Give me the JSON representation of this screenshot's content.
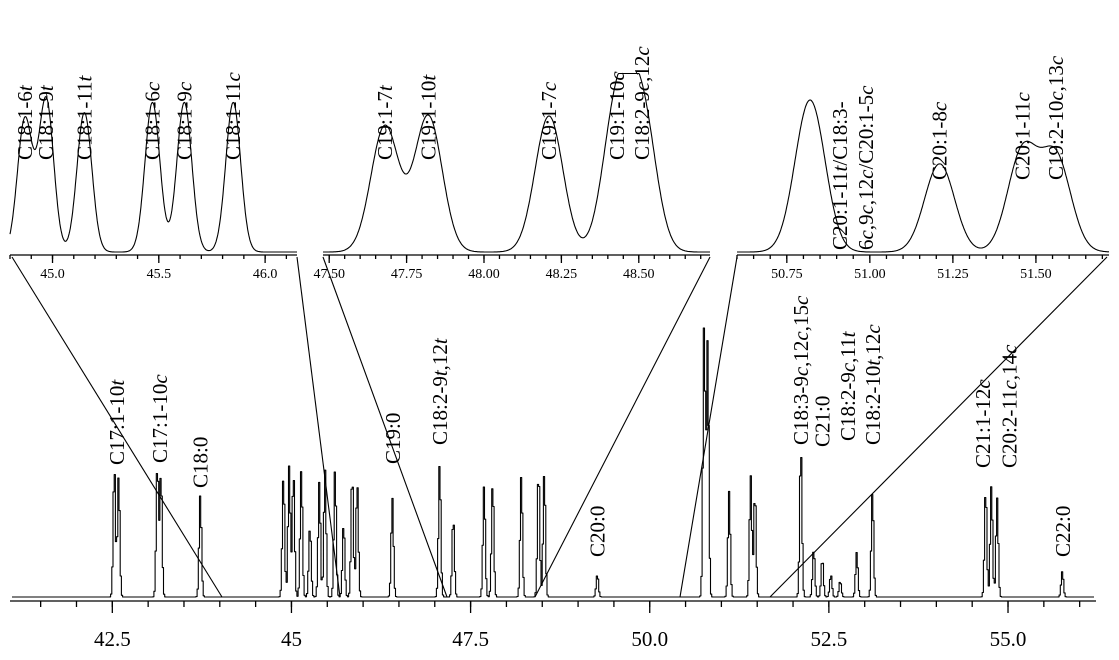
{
  "chart_data": [
    {
      "type": "line",
      "subtype": "chromatogram",
      "title": "",
      "xlabel": "",
      "ylabel": "",
      "xlim": [
        41.1,
        56.2
      ],
      "xticks": [
        "42.5",
        "45",
        "47.5",
        "50.0",
        "52.5",
        "55.0"
      ],
      "peaks": [
        {
          "x": 42.52,
          "h": 0.41
        },
        {
          "x": 42.58,
          "h": 0.38
        },
        {
          "x": 43.12,
          "h": 0.42
        },
        {
          "x": 43.17,
          "h": 0.39
        },
        {
          "x": 43.72,
          "h": 0.32
        },
        {
          "x": 44.88,
          "h": 0.38
        },
        {
          "x": 44.96,
          "h": 0.41
        },
        {
          "x": 45.02,
          "h": 0.39
        },
        {
          "x": 45.13,
          "h": 0.4
        },
        {
          "x": 45.25,
          "h": 0.22
        },
        {
          "x": 45.38,
          "h": 0.36
        },
        {
          "x": 45.46,
          "h": 0.4
        },
        {
          "x": 45.6,
          "h": 0.4
        },
        {
          "x": 45.72,
          "h": 0.23
        },
        {
          "x": 45.84,
          "h": 0.39
        },
        {
          "x": 45.91,
          "h": 0.36
        },
        {
          "x": 46.4,
          "h": 0.31
        },
        {
          "x": 47.06,
          "h": 0.42
        },
        {
          "x": 47.25,
          "h": 0.25
        },
        {
          "x": 47.68,
          "h": 0.35
        },
        {
          "x": 47.8,
          "h": 0.36
        },
        {
          "x": 48.2,
          "h": 0.38
        },
        {
          "x": 48.44,
          "h": 0.4
        },
        {
          "x": 48.52,
          "h": 0.39
        },
        {
          "x": 49.26,
          "h": 0.07
        },
        {
          "x": 50.75,
          "h": 0.85
        },
        {
          "x": 50.8,
          "h": 0.8
        },
        {
          "x": 51.1,
          "h": 0.33
        },
        {
          "x": 51.4,
          "h": 0.38
        },
        {
          "x": 51.46,
          "h": 0.33
        },
        {
          "x": 52.1,
          "h": 0.47
        },
        {
          "x": 52.28,
          "h": 0.15
        },
        {
          "x": 52.4,
          "h": 0.12
        },
        {
          "x": 52.52,
          "h": 0.07
        },
        {
          "x": 52.65,
          "h": 0.05
        },
        {
          "x": 52.88,
          "h": 0.14
        },
        {
          "x": 53.1,
          "h": 0.33
        },
        {
          "x": 54.68,
          "h": 0.34
        },
        {
          "x": 54.76,
          "h": 0.35
        },
        {
          "x": 54.84,
          "h": 0.31
        },
        {
          "x": 55.75,
          "h": 0.08
        }
      ],
      "annotations": [
        {
          "label": "C17:1-10t",
          "x": 42.55
        },
        {
          "label": "C17:1-10c",
          "x": 43.15
        },
        {
          "label": "C18:0",
          "x": 43.72
        },
        {
          "label": "C19:0",
          "x": 46.4
        },
        {
          "label": "C18:2-9t,12t",
          "x": 47.06
        },
        {
          "label": "C20:0",
          "x": 49.26
        },
        {
          "label": "C18:3-9c,12c,15c",
          "x": 52.1
        },
        {
          "label": "C21:0",
          "x": 52.4
        },
        {
          "label": "C18:2-9c,11t",
          "x": 52.75
        },
        {
          "label": "C18:2-10t,12c",
          "x": 53.1
        },
        {
          "label": "C21:1-12c",
          "x": 54.72
        },
        {
          "label": "C20:2-11c,14c",
          "x": 54.98
        },
        {
          "label": "C22:0",
          "x": 55.75
        }
      ]
    },
    {
      "type": "line",
      "subtype": "chromatogram-inset",
      "xlim": [
        44.8,
        46.15
      ],
      "xticks": [
        "45.0",
        "45.5",
        "46.0"
      ],
      "peaks": [
        {
          "x": 44.87,
          "h": 0.78,
          "label": "C18:1-6t"
        },
        {
          "x": 44.97,
          "h": 0.9,
          "label": "C18:1-9t"
        },
        {
          "x": 45.15,
          "h": 0.82,
          "label": "C18:1-11t"
        },
        {
          "x": 45.47,
          "h": 0.88,
          "label": "C18:1-6c"
        },
        {
          "x": 45.62,
          "h": 0.88,
          "label": "C18:1-9c"
        },
        {
          "x": 45.85,
          "h": 0.88,
          "label": "C18:1-11c"
        }
      ]
    },
    {
      "type": "line",
      "subtype": "chromatogram-inset",
      "xlim": [
        47.48,
        48.73
      ],
      "xticks": [
        "47.50",
        "47.75",
        "48.00",
        "48.25",
        "48.50"
      ],
      "peaks": [
        {
          "x": 47.68,
          "h": 0.74,
          "label": "C19:1-7t"
        },
        {
          "x": 47.82,
          "h": 0.8,
          "label": "C19:1-10t"
        },
        {
          "x": 48.21,
          "h": 0.8,
          "label": "C19:1-7c"
        },
        {
          "x": 48.43,
          "h": 0.86,
          "label": "C19:1-10c"
        },
        {
          "x": 48.51,
          "h": 0.82,
          "label": "C18:2-9c,12c"
        }
      ]
    },
    {
      "type": "line",
      "subtype": "chromatogram-inset",
      "xlim": [
        50.6,
        51.72
      ],
      "xticks": [
        "50.75",
        "51.00",
        "51.25",
        "51.50"
      ],
      "peaks": [
        {
          "x": 50.82,
          "h": 1.0,
          "label": "C20:1-11t/C18:3-6c,9c,12c/C20:1-5c"
        },
        {
          "x": 51.21,
          "h": 0.58,
          "label": "C20:1-8c"
        },
        {
          "x": 51.46,
          "h": 0.66,
          "label": "C20:1-11c"
        },
        {
          "x": 51.56,
          "h": 0.62,
          "label": "C19:2-10c,13c"
        }
      ]
    }
  ],
  "inset_label_lines": {
    "i2_p0": [
      "C20:1-11",
      "t",
      "/C18:3-"
    ],
    "i2_p0b": [
      "6",
      "c",
      ",9",
      "c",
      ",12",
      "c",
      "/C20:1-5",
      "c"
    ]
  }
}
